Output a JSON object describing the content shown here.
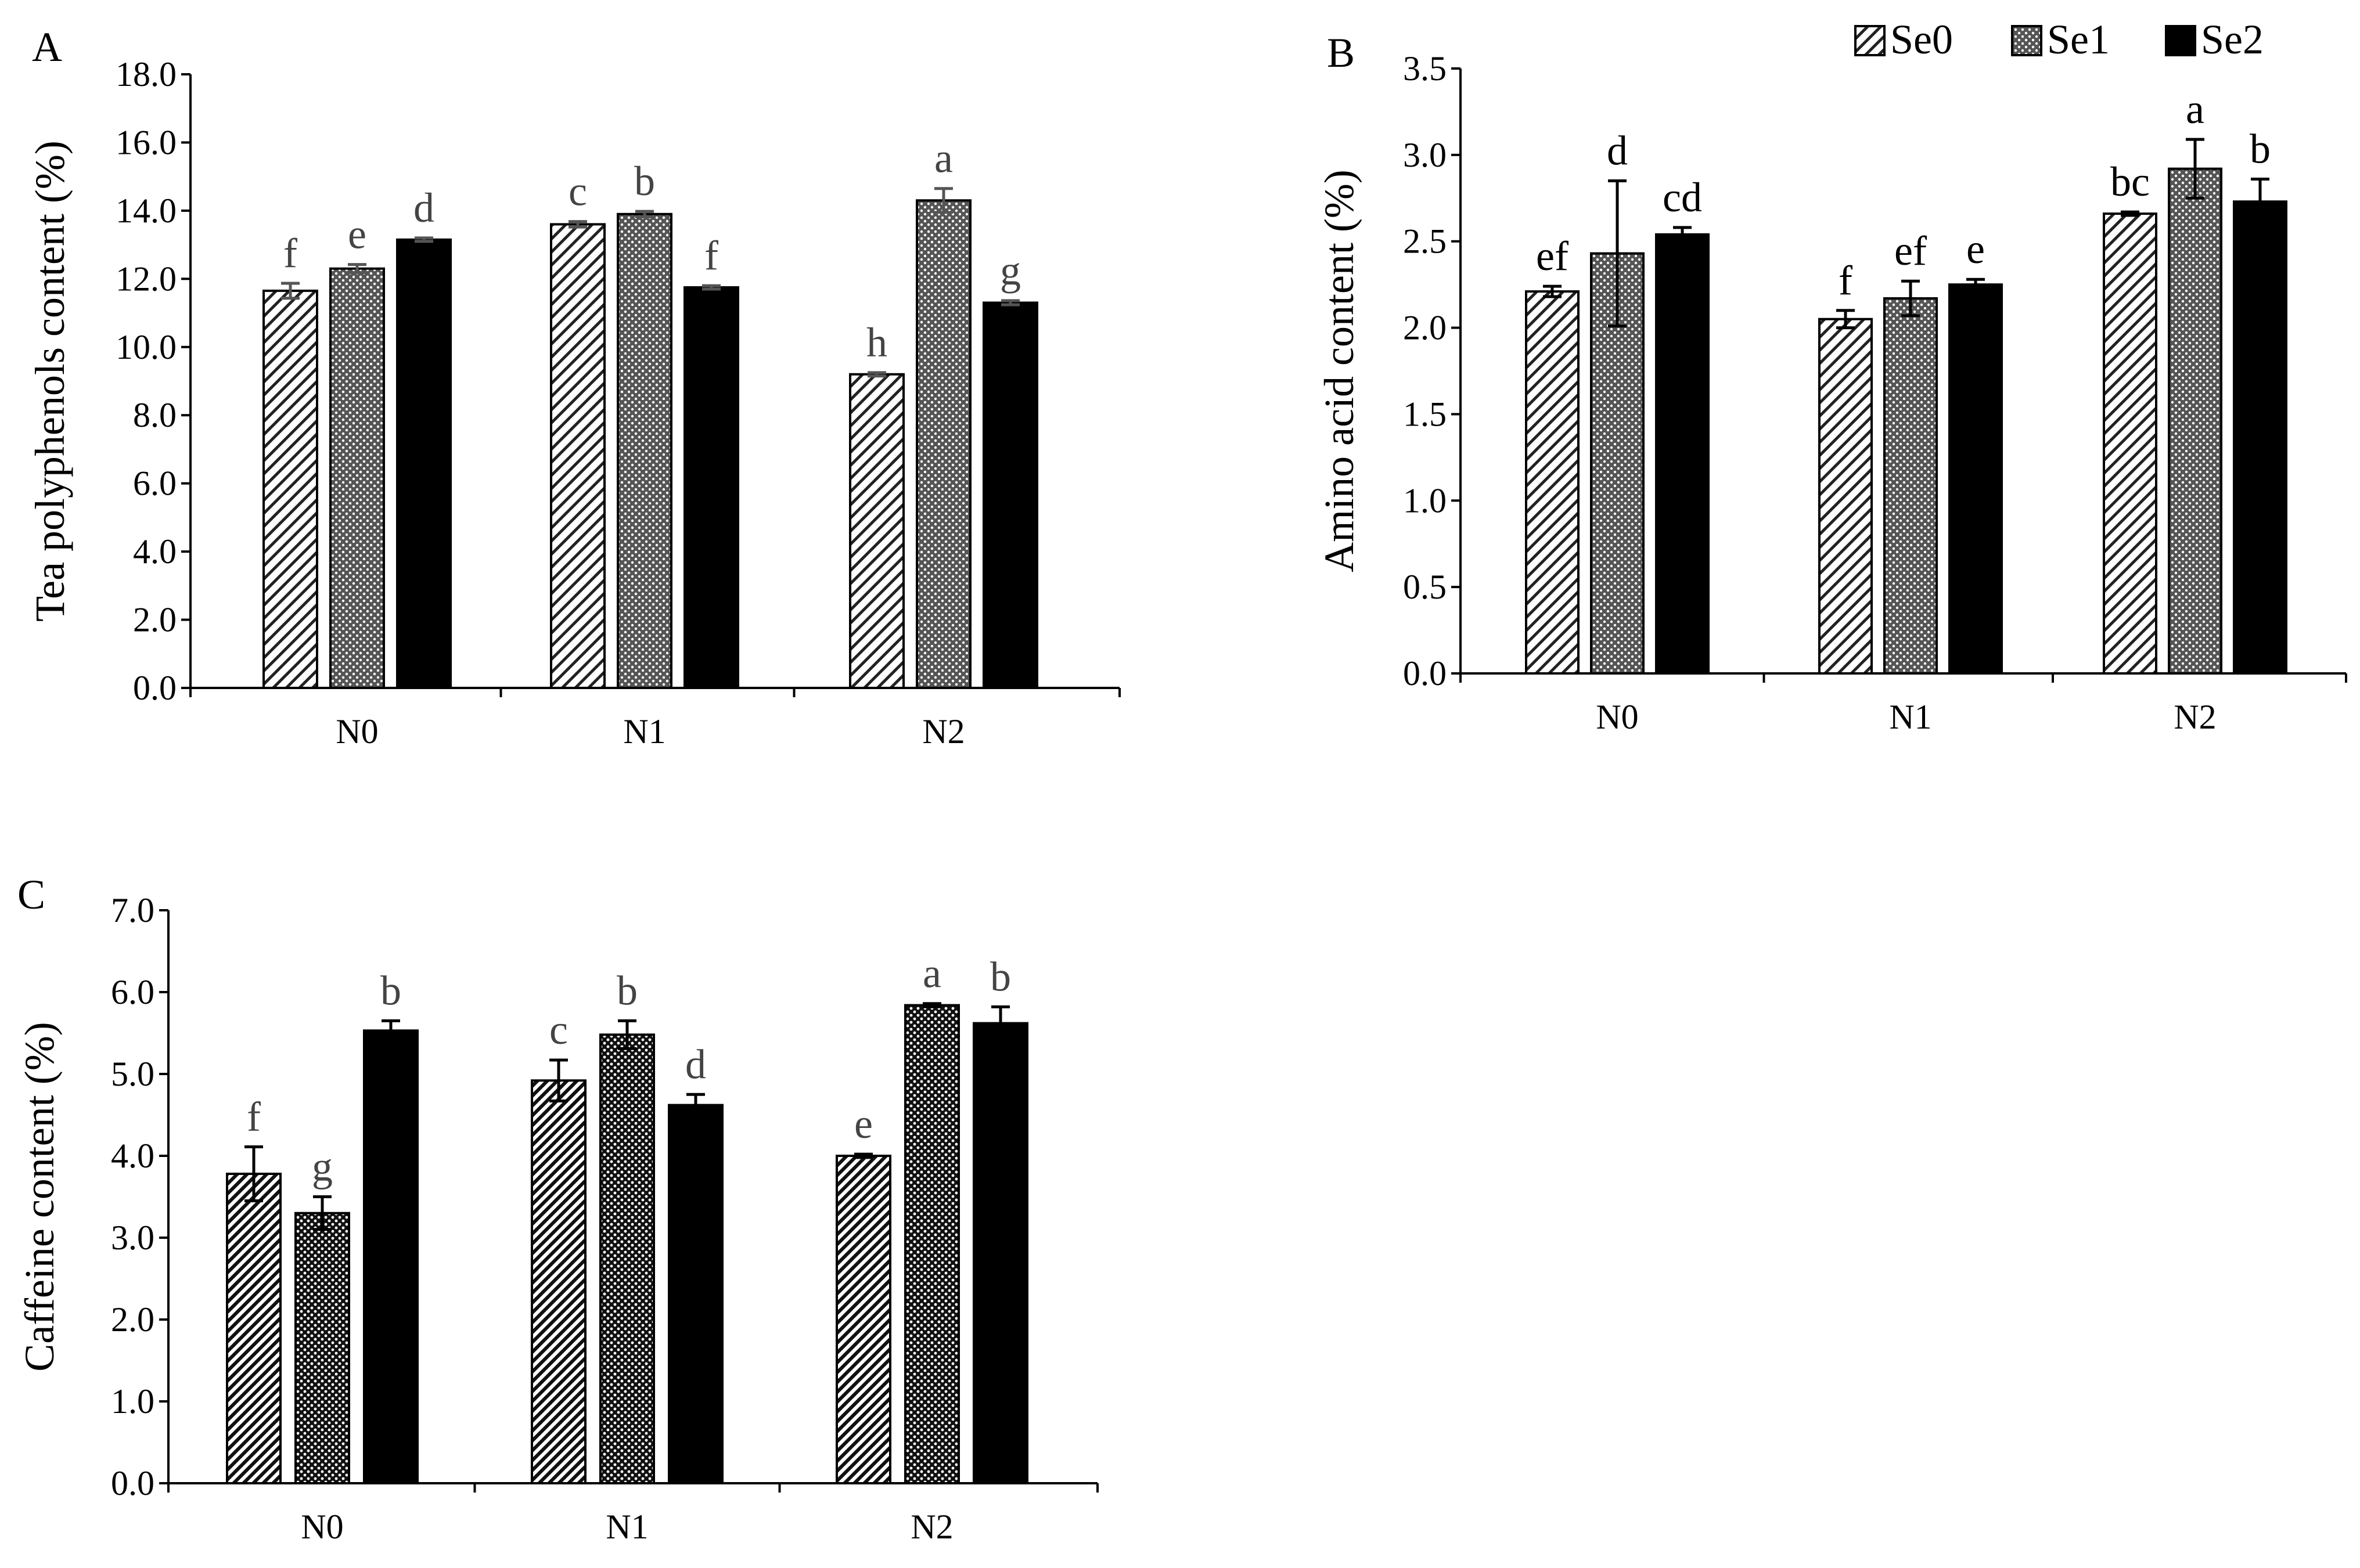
{
  "legend": {
    "items": [
      {
        "name": "Se0",
        "pattern": "hatch-sparse"
      },
      {
        "name": "Se1",
        "pattern": "dots"
      },
      {
        "name": "Se2",
        "pattern": "solid"
      }
    ],
    "placement": "top-right"
  },
  "colors": {
    "axis": "#000000",
    "bar_fill_solid": "#000000",
    "label_gray": "#444444",
    "error_bar_gray": "#555555",
    "background": "#ffffff"
  },
  "chart_data": [
    {
      "panel": "A",
      "type": "bar",
      "ylabel": "Tea polyphenols content (%)",
      "categories": [
        "N0",
        "N1",
        "N2"
      ],
      "ylim": [
        0,
        18
      ],
      "ytick_labels": [
        "0.0",
        "2.0",
        "4.0",
        "6.0",
        "8.0",
        "10.0",
        "12.0",
        "14.0",
        "16.0",
        "18.0"
      ],
      "label_color": "#444444",
      "series": [
        {
          "name": "Se0",
          "values": [
            11.65,
            13.6,
            9.2
          ],
          "errors": [
            0.22,
            0.08,
            0.05
          ],
          "letters": [
            "f",
            "c",
            "h"
          ]
        },
        {
          "name": "Se1",
          "values": [
            12.3,
            13.9,
            14.3
          ],
          "errors": [
            0.12,
            0.08,
            0.35
          ],
          "letters": [
            "e",
            "b",
            "a"
          ]
        },
        {
          "name": "Se2",
          "values": [
            13.15,
            11.75,
            11.3
          ],
          "errors": [
            0.05,
            0.05,
            0.06
          ],
          "letters": [
            "d",
            "f",
            "g"
          ]
        }
      ]
    },
    {
      "panel": "B",
      "type": "bar",
      "ylabel": "Amino acid content (%)",
      "categories": [
        "N0",
        "N1",
        "N2"
      ],
      "ylim": [
        0,
        3.5
      ],
      "ytick_labels": [
        "0.0",
        "0.5",
        "1.0",
        "1.5",
        "2.0",
        "2.5",
        "3.0",
        "3.5"
      ],
      "label_color": "#000000",
      "series": [
        {
          "name": "Se0",
          "values": [
            2.21,
            2.05,
            2.66
          ],
          "errors": [
            0.03,
            0.05,
            0.01
          ],
          "letters": [
            "ef",
            "f",
            "bc"
          ]
        },
        {
          "name": "Se1",
          "values": [
            2.43,
            2.17,
            2.92
          ],
          "errors": [
            0.42,
            0.1,
            0.17
          ],
          "letters": [
            "d",
            "ef",
            "a"
          ]
        },
        {
          "name": "Se2",
          "values": [
            2.54,
            2.25,
            2.73
          ],
          "errors": [
            0.04,
            0.03,
            0.13
          ],
          "letters": [
            "cd",
            "e",
            "b"
          ]
        }
      ]
    },
    {
      "panel": "C",
      "type": "bar",
      "ylabel": "Caffeine content (%)",
      "categories": [
        "N0",
        "N1",
        "N2"
      ],
      "ylim": [
        0,
        7
      ],
      "ytick_labels": [
        "0.0",
        "1.0",
        "2.0",
        "3.0",
        "4.0",
        "5.0",
        "6.0",
        "7.0"
      ],
      "label_color": "#444444",
      "series": [
        {
          "name": "Se0",
          "values": [
            3.78,
            4.92,
            4.0
          ],
          "errors": [
            0.33,
            0.25,
            0.02
          ],
          "letters": [
            "f",
            "c",
            "e"
          ]
        },
        {
          "name": "Se1",
          "values": [
            3.3,
            5.48,
            5.84
          ],
          "errors": [
            0.2,
            0.17,
            0.02
          ],
          "letters": [
            "g",
            "b",
            "a"
          ]
        },
        {
          "name": "Se2",
          "values": [
            5.53,
            4.62,
            5.62
          ],
          "errors": [
            0.12,
            0.13,
            0.2
          ],
          "letters": [
            "b",
            "d",
            "b"
          ]
        }
      ]
    }
  ]
}
